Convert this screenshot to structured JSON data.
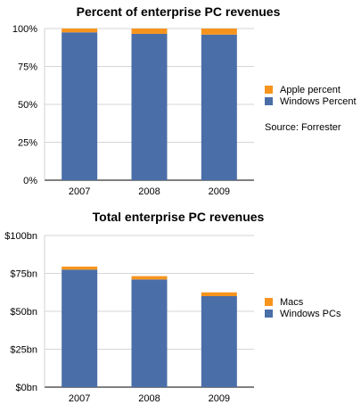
{
  "chart_data": [
    {
      "type": "bar",
      "stacked": true,
      "title": "Percent of enterprise PC revenues",
      "xlabel": "",
      "ylabel": "",
      "categories": [
        "2007",
        "2008",
        "2009"
      ],
      "series": [
        {
          "name": "Windows Percent",
          "color": "#4a6ea8",
          "values": [
            97.5,
            96.5,
            96.0
          ]
        },
        {
          "name": "Apple percent",
          "color": "#f7941d",
          "values": [
            2.5,
            3.5,
            4.0
          ]
        }
      ],
      "ylim": [
        0,
        100
      ],
      "yticks": [
        "0%",
        "25%",
        "50%",
        "75%",
        "100%"
      ],
      "grid": true,
      "legend_placement": "right",
      "annotation": "Source: Forrester"
    },
    {
      "type": "bar",
      "stacked": true,
      "title": "Total enterprise PC revenues",
      "xlabel": "",
      "ylabel": "",
      "categories": [
        "2007",
        "2008",
        "2009"
      ],
      "series": [
        {
          "name": "Windows PCs",
          "color": "#4a6ea8",
          "values": [
            77.5,
            71.0,
            60.0
          ]
        },
        {
          "name": "Macs",
          "color": "#f7941d",
          "values": [
            2.0,
            2.2,
            2.5
          ]
        }
      ],
      "ylim": [
        0,
        100
      ],
      "yticks": [
        "$0bn",
        "$25bn",
        "$50bn",
        "$75bn",
        "$100bn"
      ],
      "grid": true,
      "legend_placement": "right"
    }
  ]
}
